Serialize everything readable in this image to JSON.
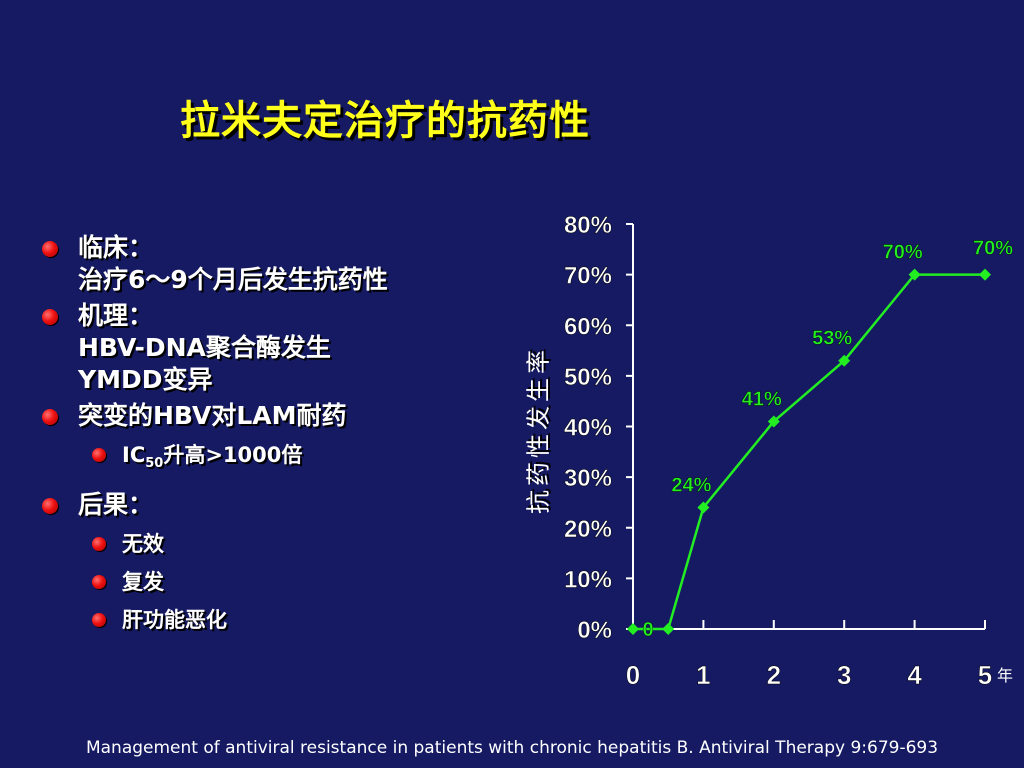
{
  "title": "拉米夫定治疗的抗药性",
  "bullets": {
    "clinical": {
      "head": "临床：",
      "detail": "治疗6～9个月后发生抗药性"
    },
    "mechanism": {
      "head": "机理：",
      "line1": "HBV-DNA聚合酶发生",
      "line2": "YMDD变异"
    },
    "resistance": {
      "head": "突变的HBV对LAM耐药",
      "sub_prefix": "IC",
      "sub_subscript": "50",
      "sub_suffix": "升高>1000倍"
    },
    "outcome": {
      "head": "后果：",
      "items": [
        "无效",
        "复发",
        "肝功能恶化"
      ]
    }
  },
  "colors": {
    "background": "#151a63",
    "title": "#ffff1a",
    "series": "#22ee22",
    "bullet": "#ee1111"
  },
  "chart_data": {
    "type": "line",
    "ylabel": "抗药性发生率",
    "xunit": "年",
    "x_ticks": [
      "0",
      "1",
      "2",
      "3",
      "4",
      "5"
    ],
    "y_ticks": [
      "0%",
      "10%",
      "20%",
      "30%",
      "40%",
      "50%",
      "60%",
      "70%",
      "80%"
    ],
    "ylim": [
      0,
      80
    ],
    "xlim": [
      0,
      5
    ],
    "grid": false,
    "series": [
      {
        "points": [
          {
            "x": 0,
            "y": 0,
            "label": "0"
          },
          {
            "x": 0.5,
            "y": 0,
            "label": ""
          },
          {
            "x": 1,
            "y": 24,
            "label": "24%"
          },
          {
            "x": 2,
            "y": 41,
            "label": "41%"
          },
          {
            "x": 3,
            "y": 53,
            "label": "53%"
          },
          {
            "x": 4,
            "y": 70,
            "label": "70%"
          },
          {
            "x": 5,
            "y": 70,
            "label": "70%"
          }
        ]
      }
    ]
  },
  "citation": "Management of antiviral resistance in patients with chronic hepatitis B. Antiviral Therapy 9:679-693"
}
